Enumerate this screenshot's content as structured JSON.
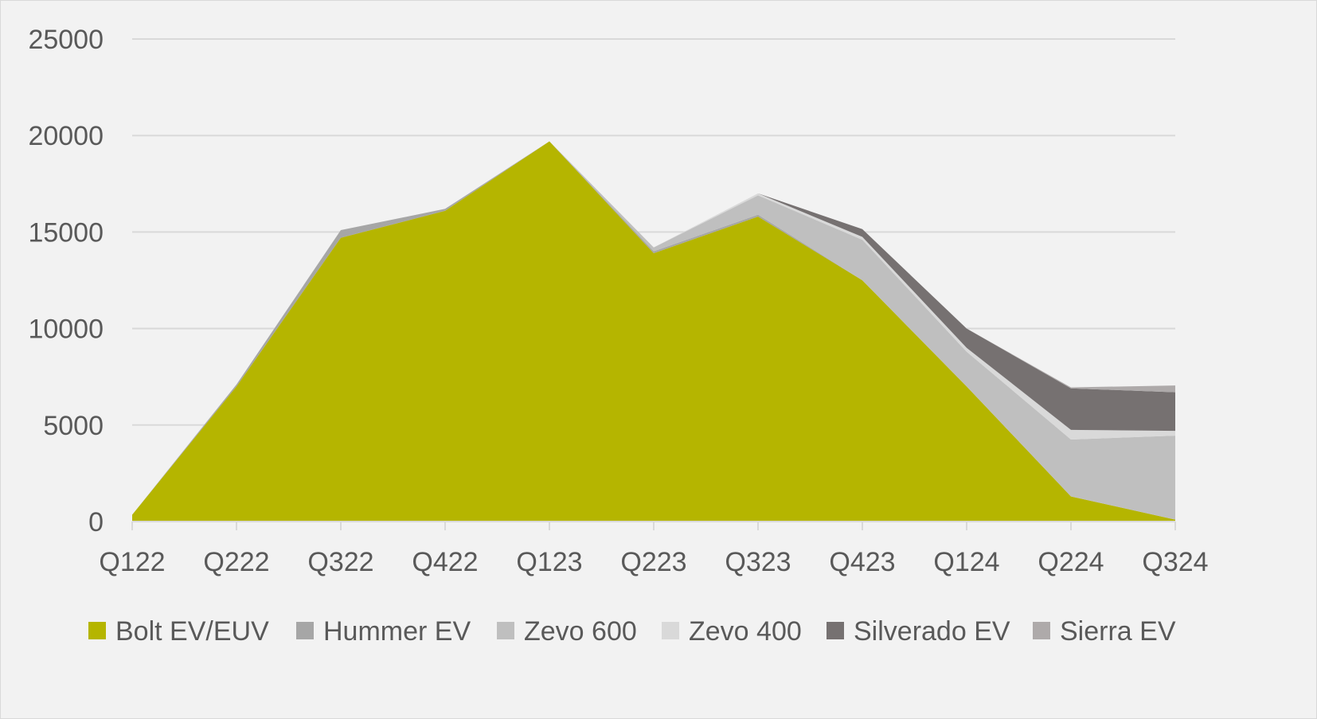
{
  "chart_data": {
    "type": "area",
    "stacked": true,
    "categories": [
      "Q122",
      "Q222",
      "Q322",
      "Q422",
      "Q123",
      "Q223",
      "Q323",
      "Q423",
      "Q124",
      "Q224",
      "Q324"
    ],
    "series": [
      {
        "name": "Bolt EV/EUV",
        "color": "#b5b500",
        "values": [
          350,
          7000,
          14700,
          16100,
          19700,
          13900,
          15800,
          12500,
          7000,
          1300,
          100
        ]
      },
      {
        "name": "Hummer EV",
        "color": "#a6a6a6",
        "values": [
          0,
          100,
          400,
          100,
          0,
          100,
          100,
          0,
          0,
          0,
          0
        ]
      },
      {
        "name": "Zevo 600",
        "color": "#bfbfbf",
        "values": [
          0,
          0,
          0,
          0,
          0,
          200,
          1000,
          2100,
          1800,
          2950,
          4350
        ]
      },
      {
        "name": "Zevo 400",
        "color": "#d9d9d9",
        "values": [
          0,
          0,
          0,
          0,
          0,
          0,
          100,
          150,
          200,
          500,
          250
        ]
      },
      {
        "name": "Silverado EV",
        "color": "#767171",
        "values": [
          0,
          0,
          0,
          0,
          0,
          0,
          0,
          400,
          1000,
          2150,
          2000
        ]
      },
      {
        "name": "Sierra EV",
        "color": "#aeaaaa",
        "values": [
          0,
          0,
          0,
          0,
          0,
          0,
          0,
          0,
          0,
          50,
          350
        ]
      }
    ],
    "yticks": [
      0,
      5000,
      10000,
      15000,
      20000,
      25000
    ],
    "ylim": [
      0,
      25000
    ],
    "grid": true,
    "legend": "bottom",
    "background": "#f2f2f2",
    "gridColor": "#d9d9d9",
    "textColor": "#595959"
  }
}
